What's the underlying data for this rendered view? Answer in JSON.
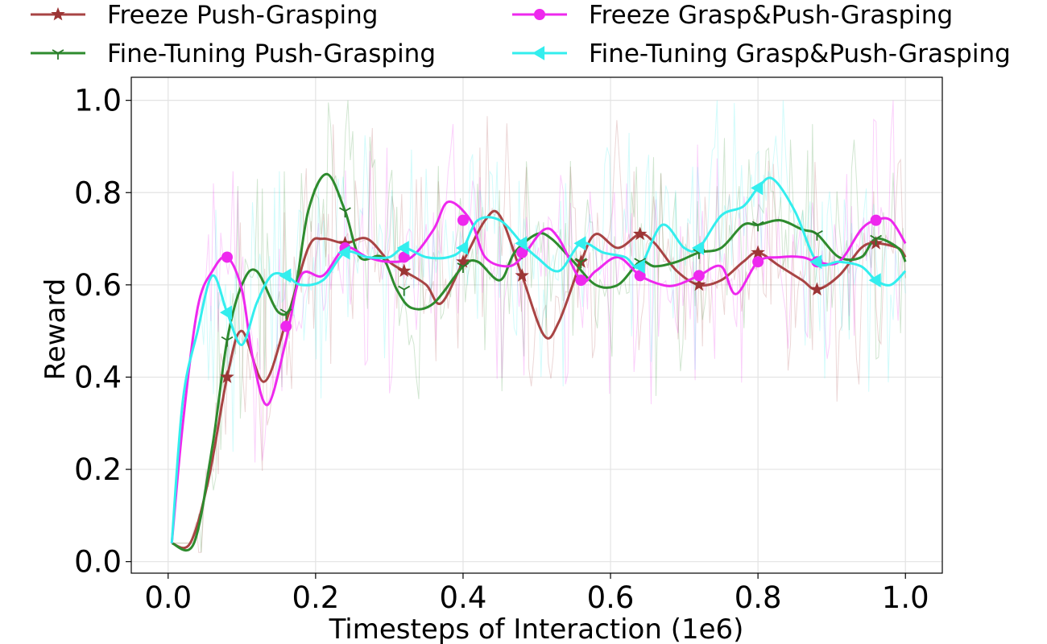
{
  "chart_data": {
    "type": "line",
    "title": "",
    "xlabel": "Timesteps of Interaction (1e6)",
    "ylabel": "Reward",
    "xlim": [
      -0.05,
      1.05
    ],
    "ylim": [
      -0.025,
      1.05
    ],
    "xticks": [
      0.0,
      0.2,
      0.4,
      0.6,
      0.8,
      1.0
    ],
    "xtick_labels": [
      "0.0",
      "0.2",
      "0.4",
      "0.6",
      "0.8",
      "1.0"
    ],
    "yticks": [
      0.0,
      0.2,
      0.4,
      0.6,
      0.8,
      1.0
    ],
    "ytick_labels": [
      "0.0",
      "0.2",
      "0.4",
      "0.6",
      "0.8",
      "1.0"
    ],
    "grid": true,
    "legend": "top, 2 columns, outside plot",
    "series": [
      {
        "name": "Freeze Push-Grasping",
        "color": "#a84444",
        "marker": "star",
        "x": [
          0.005,
          0.03,
          0.055,
          0.08,
          0.1,
          0.13,
          0.16,
          0.19,
          0.21,
          0.24,
          0.27,
          0.3,
          0.32,
          0.35,
          0.37,
          0.4,
          0.43,
          0.45,
          0.48,
          0.51,
          0.53,
          0.56,
          0.58,
          0.61,
          0.64,
          0.66,
          0.69,
          0.72,
          0.75,
          0.78,
          0.8,
          0.83,
          0.86,
          0.88,
          0.91,
          0.94,
          0.96,
          0.99,
          1.0
        ],
        "values": [
          0.04,
          0.04,
          0.18,
          0.4,
          0.5,
          0.39,
          0.52,
          0.68,
          0.7,
          0.69,
          0.7,
          0.65,
          0.63,
          0.6,
          0.56,
          0.65,
          0.74,
          0.75,
          0.62,
          0.49,
          0.52,
          0.65,
          0.71,
          0.68,
          0.71,
          0.69,
          0.63,
          0.6,
          0.61,
          0.65,
          0.67,
          0.64,
          0.61,
          0.59,
          0.62,
          0.68,
          0.69,
          0.68,
          0.66
        ],
        "marker_x": [
          0.08,
          0.24,
          0.32,
          0.4,
          0.48,
          0.56,
          0.64,
          0.72,
          0.8,
          0.88,
          0.96
        ],
        "marker_values": [
          0.4,
          0.69,
          0.63,
          0.65,
          0.62,
          0.65,
          0.71,
          0.6,
          0.67,
          0.59,
          0.69
        ]
      },
      {
        "name": "Fine-Tuning Push-Grasping",
        "color": "#2e8b2e",
        "marker": "tri_down",
        "x": [
          0.005,
          0.035,
          0.06,
          0.08,
          0.1,
          0.12,
          0.15,
          0.17,
          0.19,
          0.215,
          0.24,
          0.26,
          0.29,
          0.31,
          0.33,
          0.36,
          0.4,
          0.42,
          0.45,
          0.47,
          0.5,
          0.52,
          0.55,
          0.58,
          0.61,
          0.64,
          0.66,
          0.69,
          0.72,
          0.75,
          0.78,
          0.8,
          0.83,
          0.86,
          0.88,
          0.91,
          0.94,
          0.96,
          0.99,
          1.0
        ],
        "values": [
          0.04,
          0.04,
          0.25,
          0.48,
          0.6,
          0.63,
          0.54,
          0.57,
          0.76,
          0.84,
          0.76,
          0.66,
          0.66,
          0.59,
          0.55,
          0.56,
          0.64,
          0.65,
          0.61,
          0.67,
          0.71,
          0.7,
          0.65,
          0.6,
          0.6,
          0.65,
          0.64,
          0.65,
          0.67,
          0.68,
          0.73,
          0.73,
          0.74,
          0.72,
          0.71,
          0.66,
          0.66,
          0.7,
          0.68,
          0.65
        ],
        "marker_x": [
          0.08,
          0.16,
          0.24,
          0.32,
          0.4,
          0.48,
          0.56,
          0.64,
          0.72,
          0.8,
          0.88,
          0.96
        ],
        "marker_values": [
          0.48,
          0.54,
          0.76,
          0.59,
          0.64,
          0.67,
          0.65,
          0.65,
          0.67,
          0.73,
          0.71,
          0.7
        ]
      },
      {
        "name": "Freeze Grasp&Push-Grasping",
        "color": "#ee28ee",
        "marker": "circle",
        "x": [
          0.005,
          0.02,
          0.04,
          0.06,
          0.08,
          0.1,
          0.115,
          0.135,
          0.16,
          0.18,
          0.21,
          0.24,
          0.27,
          0.3,
          0.33,
          0.36,
          0.38,
          0.41,
          0.43,
          0.46,
          0.48,
          0.51,
          0.53,
          0.56,
          0.58,
          0.61,
          0.64,
          0.67,
          0.69,
          0.72,
          0.75,
          0.77,
          0.8,
          0.83,
          0.86,
          0.88,
          0.91,
          0.94,
          0.96,
          0.98,
          1.0
        ],
        "values": [
          0.04,
          0.3,
          0.55,
          0.63,
          0.66,
          0.59,
          0.44,
          0.34,
          0.48,
          0.62,
          0.62,
          0.68,
          0.66,
          0.65,
          0.66,
          0.72,
          0.78,
          0.74,
          0.66,
          0.64,
          0.66,
          0.72,
          0.7,
          0.61,
          0.63,
          0.66,
          0.62,
          0.6,
          0.6,
          0.62,
          0.64,
          0.58,
          0.65,
          0.66,
          0.66,
          0.65,
          0.65,
          0.72,
          0.74,
          0.74,
          0.69
        ],
        "marker_x": [
          0.08,
          0.16,
          0.24,
          0.32,
          0.4,
          0.48,
          0.56,
          0.64,
          0.72,
          0.8,
          0.88,
          0.96
        ],
        "marker_values": [
          0.66,
          0.51,
          0.68,
          0.66,
          0.74,
          0.67,
          0.61,
          0.62,
          0.62,
          0.65,
          0.65,
          0.74
        ]
      },
      {
        "name": "Fine-Tuning Grasp&Push-Grasping",
        "color": "#33eeee",
        "marker": "triangle_left",
        "x": [
          0.005,
          0.02,
          0.04,
          0.06,
          0.08,
          0.1,
          0.12,
          0.14,
          0.16,
          0.18,
          0.21,
          0.24,
          0.27,
          0.3,
          0.32,
          0.35,
          0.38,
          0.4,
          0.42,
          0.45,
          0.48,
          0.5,
          0.53,
          0.56,
          0.59,
          0.62,
          0.64,
          0.67,
          0.7,
          0.72,
          0.75,
          0.78,
          0.8,
          0.82,
          0.85,
          0.88,
          0.91,
          0.94,
          0.96,
          0.98,
          1.0
        ],
        "values": [
          0.04,
          0.35,
          0.5,
          0.62,
          0.54,
          0.47,
          0.56,
          0.62,
          0.62,
          0.6,
          0.61,
          0.67,
          0.66,
          0.66,
          0.68,
          0.66,
          0.66,
          0.68,
          0.74,
          0.74,
          0.69,
          0.66,
          0.63,
          0.69,
          0.67,
          0.66,
          0.64,
          0.73,
          0.68,
          0.68,
          0.75,
          0.77,
          0.81,
          0.83,
          0.76,
          0.65,
          0.65,
          0.64,
          0.61,
          0.6,
          0.63
        ],
        "marker_x": [
          0.08,
          0.16,
          0.24,
          0.32,
          0.4,
          0.48,
          0.56,
          0.64,
          0.72,
          0.8,
          0.88,
          0.96
        ],
        "marker_values": [
          0.54,
          0.62,
          0.67,
          0.68,
          0.68,
          0.69,
          0.69,
          0.64,
          0.68,
          0.81,
          0.65,
          0.61
        ]
      }
    ]
  }
}
